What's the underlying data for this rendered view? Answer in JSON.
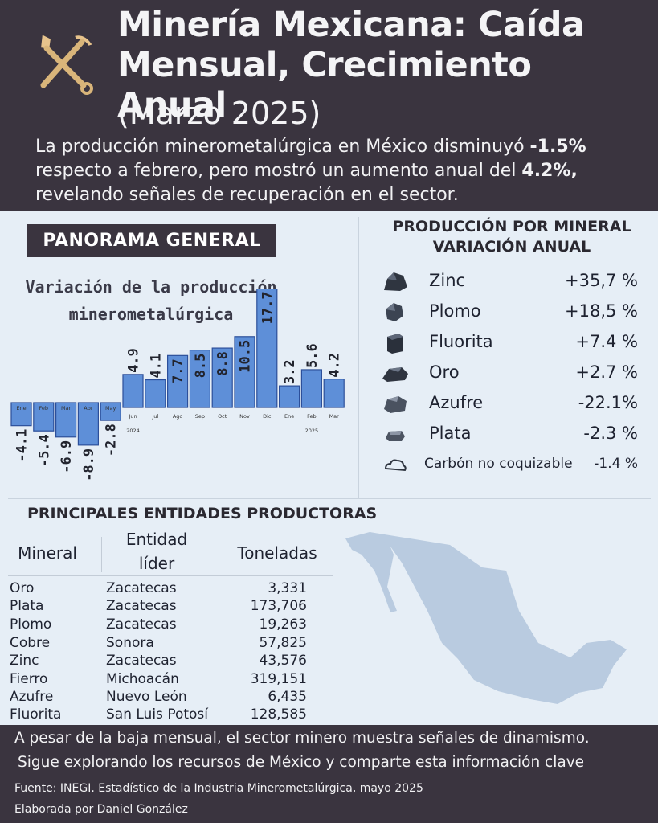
{
  "header": {
    "title": "Minería Mexicana: Caída Mensual, Crecimiento Anual",
    "subtitle": "(Marzo 2025)",
    "intro_1": "La producción minerometalúrgica en México disminuyó ",
    "intro_monthly": "-1.5%",
    "intro_2": " respecto a febrero, pero mostró un aumento anual del ",
    "intro_annual": "4.2%,",
    "intro_3": " revelando señales de recuperación en el sector."
  },
  "panorama": {
    "label": "PANORAMA GENERAL"
  },
  "chart_data": {
    "type": "bar",
    "title": "Variación de la producción minerometalúrgica",
    "categories": [
      "Ene",
      "Feb",
      "Mar",
      "Abr",
      "May",
      "Jun",
      "Jul",
      "Ago",
      "Sep",
      "Oct",
      "Nov",
      "Dic",
      "Ene",
      "Feb",
      "Mar"
    ],
    "values": [
      -4.1,
      -5.4,
      -6.9,
      -8.9,
      -2.8,
      4.9,
      4.1,
      7.7,
      8.5,
      8.8,
      10.5,
      17.7,
      3.2,
      5.6,
      4.2
    ],
    "year_labels": [
      {
        "label": "2024",
        "index": 5
      },
      {
        "label": "2025",
        "index": 13
      }
    ],
    "bar_color": "#5e8fd8"
  },
  "mineral_section": {
    "heading_1": "PRODUCCIÓN POR MINERAL",
    "heading_2": "VARIACIÓN ANUAL",
    "items": [
      {
        "name": "Zinc",
        "pct": "+35,7 %",
        "icon": "zinc-ore-icon"
      },
      {
        "name": "Plomo",
        "pct": "+18,5 %",
        "icon": "lead-ore-icon"
      },
      {
        "name": "Fluorita",
        "pct": "+7.4 %",
        "icon": "fluorite-ore-icon"
      },
      {
        "name": "Oro",
        "pct": "+2.7 %",
        "icon": "gold-ore-icon"
      },
      {
        "name": "Azufre",
        "pct": "-22.1%",
        "icon": "sulfur-ore-icon"
      },
      {
        "name": "Plata",
        "pct": "-2.3 %",
        "icon": "silver-ore-icon"
      },
      {
        "name": "Carbón no coquizable",
        "pct": "-1.4 %",
        "icon": "coal-icon"
      }
    ]
  },
  "entities": {
    "heading": "PRINCIPALES ENTIDADES PRODUCTORAS",
    "col_mineral": "Mineral",
    "col_entity_1": "Entidad",
    "col_entity_2": "líder",
    "col_tons": "Toneladas",
    "rows": [
      {
        "mineral": "Oro",
        "entity": "Zacatecas",
        "tons": "3,331"
      },
      {
        "mineral": "Plata",
        "entity": "Zacatecas",
        "tons": "173,706"
      },
      {
        "mineral": "Plomo",
        "entity": "Zacatecas",
        "tons": "19,263"
      },
      {
        "mineral": "Cobre",
        "entity": "Sonora",
        "tons": "57,825"
      },
      {
        "mineral": "Zinc",
        "entity": "Zacatecas",
        "tons": "43,576"
      },
      {
        "mineral": "Fierro",
        "entity": "Michoacán",
        "tons": "319,151"
      },
      {
        "mineral": "Azufre",
        "entity": "Nuevo León",
        "tons": "6,435"
      },
      {
        "mineral": "Fluorita",
        "entity": "San Luis Potosí",
        "tons": "128,585"
      }
    ]
  },
  "footer": {
    "line_1": "A pesar de la baja mensual, el sector minero muestra señales de dinamismo.",
    "line_2": "Sigue explorando los recursos de México y comparte esta información clave",
    "source": "Fuente: INEGI. Estadístico de la Industria Minerometalúrgica, mayo 2025",
    "author": "Elaborada por Daniel González"
  }
}
